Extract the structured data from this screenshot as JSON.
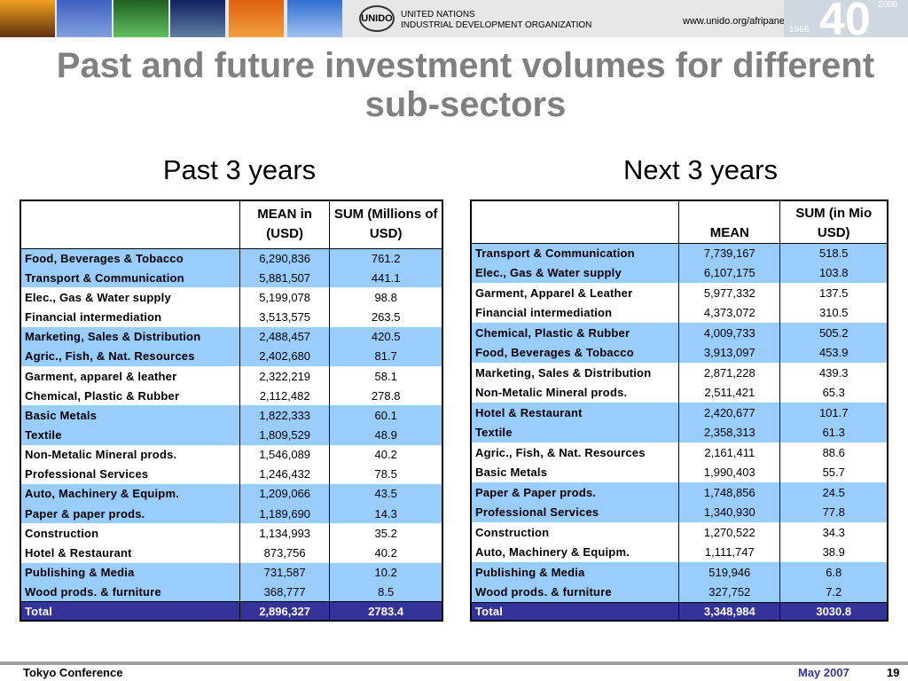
{
  "header": {
    "logo": "UNIDO",
    "org_line1": "UNITED NATIONS",
    "org_line2": "INDUSTRIAL DEVELOPMENT ORGANIZATION",
    "url": "www.unido.org/afripanet",
    "anniversary": "40",
    "year_start": "1966",
    "year_end": "2006"
  },
  "title": "Past and future investment volumes for different sub-sectors",
  "tables": [
    {
      "title": "Past 3 years",
      "columns": [
        "MEAN in (USD)",
        "SUM (Millions of USD)"
      ],
      "rows": [
        [
          "Food, Beverages & Tobacco",
          "6,290,836",
          "761.2"
        ],
        [
          "Transport & Communication",
          "5,881,507",
          "441.1"
        ],
        [
          "Elec., Gas & Water supply",
          "5,199,078",
          "98.8"
        ],
        [
          "Financial intermediation",
          "3,513,575",
          "263.5"
        ],
        [
          "Marketing, Sales & Distribution",
          "2,488,457",
          "420.5"
        ],
        [
          "Agric., Fish, & Nat. Resources",
          "2,402,680",
          "81.7"
        ],
        [
          "Garment, apparel & leather",
          "2,322,219",
          "58.1"
        ],
        [
          "Chemical, Plastic & Rubber",
          "2,112,482",
          "278.8"
        ],
        [
          "Basic Metals",
          "1,822,333",
          "60.1"
        ],
        [
          "Textile",
          "1,809,529",
          "48.9"
        ],
        [
          "Non-Metalic Mineral prods.",
          "1,546,089",
          "40.2"
        ],
        [
          "Professional Services",
          "1,246,432",
          "78.5"
        ],
        [
          "Auto, Machinery & Equipm.",
          "1,209,066",
          "43.5"
        ],
        [
          "Paper & paper prods.",
          "1,189,690",
          "14.3"
        ],
        [
          "Construction",
          "1,134,993",
          "35.2"
        ],
        [
          "Hotel & Restaurant",
          "873,756",
          "40.2"
        ],
        [
          "Publishing & Media",
          "731,587",
          "10.2"
        ],
        [
          "Wood prods. & furniture",
          "368,777",
          "8.5"
        ]
      ],
      "total": [
        "Total",
        "2,896,327",
        "2783.4"
      ]
    },
    {
      "title": "Next 3 years",
      "columns": [
        "MEAN",
        "SUM (in Mio USD)"
      ],
      "rows": [
        [
          "Transport & Communication",
          "7,739,167",
          "518.5"
        ],
        [
          "Elec., Gas & Water supply",
          "6,107,175",
          "103.8"
        ],
        [
          "Garment, Apparel & Leather",
          "5,977,332",
          "137.5"
        ],
        [
          "Financial intermediation",
          "4,373,072",
          "310.5"
        ],
        [
          "Chemical, Plastic & Rubber",
          "4,009,733",
          "505.2"
        ],
        [
          "Food, Beverages & Tobacco",
          "3,913,097",
          "453.9"
        ],
        [
          "Marketing, Sales & Distribution",
          "2,871,228",
          "439.3"
        ],
        [
          "Non-Metalic Mineral prods.",
          "2,511,421",
          "65.3"
        ],
        [
          "Hotel & Restaurant",
          "2,420,677",
          "101.7"
        ],
        [
          "Textile",
          "2,358,313",
          "61.3"
        ],
        [
          "Agric., Fish, & Nat. Resources",
          "2,161,411",
          "88.6"
        ],
        [
          "Basic Metals",
          "1,990,403",
          "55.7"
        ],
        [
          "Paper & Paper prods.",
          "1,748,856",
          "24.5"
        ],
        [
          "Professional Services",
          "1,340,930",
          "77.8"
        ],
        [
          "Construction",
          "1,270,522",
          "34.3"
        ],
        [
          "Auto, Machinery & Equipm.",
          "1,111,747",
          "38.9"
        ],
        [
          "Publishing & Media",
          "519,946",
          "6.8"
        ],
        [
          "Wood prods. & furniture",
          "327,752",
          "7.2"
        ]
      ],
      "total": [
        "Total",
        "3,348,984",
        "3030.8"
      ]
    }
  ],
  "footer": {
    "event": "Tokyo Conference",
    "date": "May 2007",
    "page": "19"
  }
}
